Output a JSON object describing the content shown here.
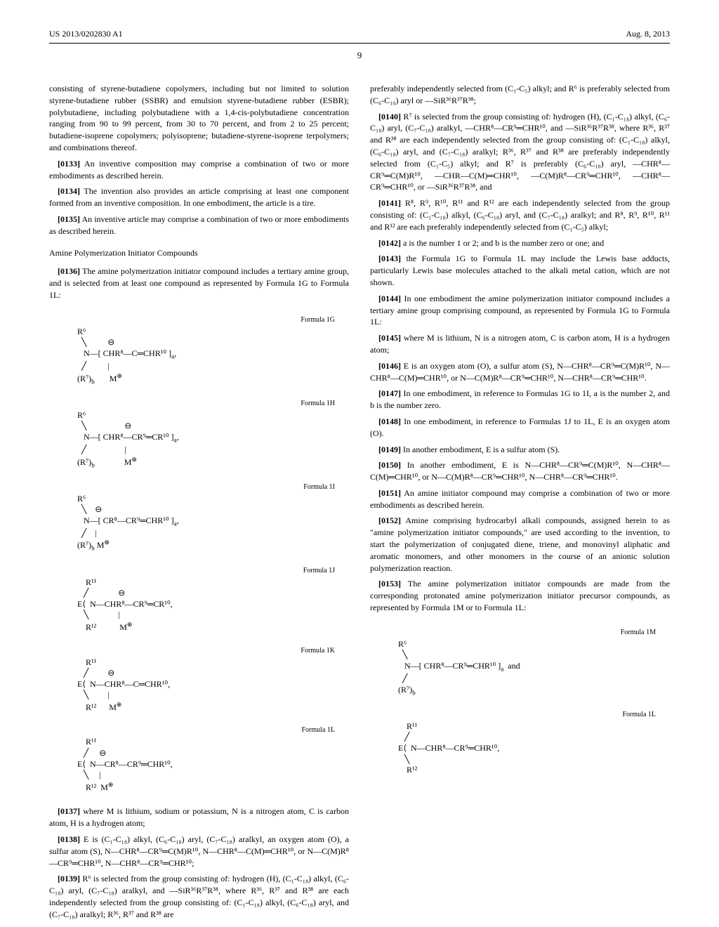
{
  "header": {
    "patent_number": "US 2013/0202830 A1",
    "date": "Aug. 8, 2013"
  },
  "page_number": "9",
  "left_column": {
    "intro_text": "consisting of styrene-butadiene copolymers, including but not limited to solution styrene-butadiene rubber (SSBR) and emulsion styrene-butadiene rubber (ESBR); polybutadiene, including polybutadiene with a 1,4-cis-polybutadiene concentration ranging from 90 to 99 percent, from 30 to 70 percent, and from 2 to 25 percent; butadiene-isoprene copolymers; polyisoprene; butadiene-styrene-isoprene terpolymers; and combinations thereof.",
    "p0133_num": "[0133]",
    "p0133": "An inventive composition may comprise a combination of two or more embodiments as described herein.",
    "p0134_num": "[0134]",
    "p0134": "The invention also provides an article comprising at least one component formed from an inventive composition. In one embodiment, the article is a tire.",
    "p0135_num": "[0135]",
    "p0135": "An inventive article may comprise a combination of two or more embodiments as described herein.",
    "section_title": "Amine Polymerization Initiator Compounds",
    "p0136_num": "[0136]",
    "p0136": "The amine polymerization initiator compound includes a tertiary amine group, and is selected from at least one compound as represented by Formula 1G to Formula 1L:",
    "formula_1g_label": "Formula 1G",
    "formula_1h_label": "Formula 1H",
    "formula_1i_label": "Formula 1I",
    "formula_1j_label": "Formula 1J",
    "formula_1k_label": "Formula 1K",
    "formula_1l_label": "Formula 1L",
    "p0137_num": "[0137]",
    "p0137": "where M is lithium, sodium or potassium, N is a nitrogen atom, C is carbon atom, H is a hydrogen atom;",
    "p0138_num": "[0138]",
    "p0138": "E is (C₁-C₁₈) alkyl, (C₆-C₁₈) aryl, (C₇-C₁₈) aralkyl, an oxygen atom (O), a sulfur atom (S), N—CHR⁸—CR⁹═C(M)R¹⁰, N—CHR⁸—C(M)═CHR¹⁰, or N—C(M)R⁸—CR⁹═CHR¹⁰, N—CHR⁸—CR⁹═CHR¹⁰;",
    "p0139_num": "[0139]",
    "p0139": "R⁶ is selected from the group consisting of: hydrogen (H), (C₁-C₁₈) alkyl, (C₆-C₁₈) aryl, (C₇-C₁₈) aralkyl, and —SiR³⁶R³⁷R³⁸, where R³⁶, R³⁷ and R³⁸ are each independently selected from the group consisting of: (C₁-C₁₈) alkyl, (C₆-C₁₈) aryl, and (C₇-C₁₈) aralkyl; R³⁶, R³⁷ and R³⁸ are"
  },
  "right_column": {
    "intro_text": "preferably independently selected from (C₁-C₅) alkyl; and R⁶ is preferably selected from (C₆-C₁₀) aryl or —SiR³⁶R³⁷R³⁸;",
    "p0140_num": "[0140]",
    "p0140": "R⁷ is selected from the group consisting of: hydrogen (H), (C₁-C₁₈) alkyl, (C₆-C₁₈) aryl, (C₇-C₁₈) aralkyl, —CHR⁸—CR⁹═CHR¹⁰, and —SiR³⁶R³⁷R³⁸, where R³⁶, R³⁷ and R³⁸ are each independently selected from the group consisting of: (C₁-C₁₈) alkyl, (C₆-C₁₈) aryl, and (C₇-C₁₈) aralkyl; R³⁶, R³⁷ and R³⁸ are preferably independently selected from (C₁-C₅) alkyl; and R⁷ is preferably (C₆-C₁₀) aryl, —CHR⁸—CR⁹═C(M)R¹⁰, —CHR—C(M)═CHR¹⁰, —C(M)R⁸—CR⁹═CHR¹⁰, —CHR⁸—CR⁹═CHR¹⁰, or —SiR³⁶R³⁷R³⁸, and",
    "p0141_num": "[0141]",
    "p0141": "R⁸, R⁹, R¹⁰, R¹¹ and R¹² are each independently selected from the group consisting of: (C₁-C₁₈) alkyl, (C₆-C₁₈) aryl, and (C₇-C₁₈) aralkyl; and R⁸, R⁹, R¹⁰, R¹¹ and R¹² are each preferably independently selected from (C₁-C₅) alkyl;",
    "p0142_num": "[0142]",
    "p0142": "a is the number 1 or 2; and b is the number zero or one; and",
    "p0143_num": "[0143]",
    "p0143": "the Formula 1G to Formula 1L may include the Lewis base adducts, particularly Lewis base molecules attached to the alkali metal cation, which are not shown.",
    "p0144_num": "[0144]",
    "p0144": "In one embodiment the amine polymerization initiator compound includes a tertiary amine group comprising compound, as represented by Formula 1G to Formula 1L:",
    "p0145_num": "[0145]",
    "p0145": "where M is lithium, N is a nitrogen atom, C is carbon atom, H is a hydrogen atom;",
    "p0146_num": "[0146]",
    "p0146": "E is an oxygen atom (O), a sulfur atom (S), N—CHR⁸—CR⁹═C(M)R¹⁰, N—CHR⁸—C(M)═CHR¹⁰, or N—C(M)R⁸—CR⁹═CHR¹⁰, N—CHR⁸—CR⁹═CHR¹⁰.",
    "p0147_num": "[0147]",
    "p0147": "In one embodiment, in reference to Formulas 1G to 1I, a is the number 2, and b is the number zero.",
    "p0148_num": "[0148]",
    "p0148": "In one embodiment, in reference to Formulas 1J to 1L, E is an oxygen atom (O).",
    "p0149_num": "[0149]",
    "p0149": "In another embodiment, E is a sulfur atom (S).",
    "p0150_num": "[0150]",
    "p0150": "In another embodiment, E is N—CHR⁸—CR⁹═C(M)R¹⁰, N—CHR⁸—C(M)═CHR¹⁰, or N—C(M)R⁸—CR⁹═CHR¹⁰, N—CHR⁸—CR⁹═CHR¹⁰.",
    "p0151_num": "[0151]",
    "p0151": "An amine initiator compound may comprise a combination of two or more embodiments as described herein.",
    "p0152_num": "[0152]",
    "p0152": "Amine comprising hydrocarbyl alkali compounds, assigned herein to as \"amine polymerization initiator compounds,\" are used according to the invention, to start the polymerization of conjugated diene, triene, and monovinyl aliphatic and aromatic monomers, and other monomers in the course of an anionic solution polymerization reaction.",
    "p0153_num": "[0153]",
    "p0153": "The amine polymerization initiator compounds are made from the corresponding protonated amine polymerization initiator precursor compounds, as represented by Formula 1M or to Formula 1L:",
    "formula_1m_label": "Formula 1M",
    "formula_1l2_label": "Formula 1L"
  }
}
